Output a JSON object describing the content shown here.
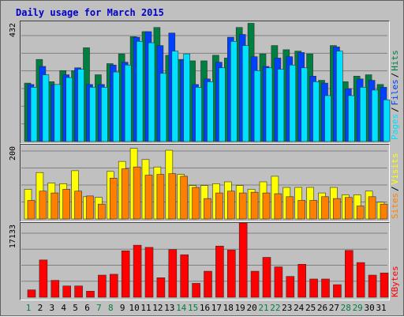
{
  "chart_data": [
    {
      "type": "bar",
      "title": "Daily usage for March 2015",
      "panel": "hits-files-pages",
      "ymax_label": "432",
      "ylim": [
        0,
        432
      ],
      "legend_placement": "right-vertical",
      "legend": [
        {
          "name": "Pages",
          "color": "#00e0ff"
        },
        {
          "name": "Files",
          "color": "#0040ff"
        },
        {
          "name": "Hits",
          "color": "#008040"
        }
      ],
      "legend_separator": "/",
      "categories": [
        "1",
        "2",
        "3",
        "4",
        "5",
        "6",
        "7",
        "8",
        "9",
        "10",
        "11",
        "12",
        "13",
        "14",
        "15",
        "16",
        "17",
        "18",
        "19",
        "20",
        "21",
        "22",
        "23",
        "24",
        "25",
        "26",
        "27",
        "28",
        "29",
        "30",
        "31"
      ],
      "series": [
        {
          "name": "Hits",
          "color": "#008040",
          "values": [
            210,
            295,
            215,
            255,
            255,
            337,
            240,
            280,
            315,
            377,
            395,
            410,
            310,
            295,
            290,
            290,
            310,
            300,
            410,
            425,
            315,
            345,
            330,
            325,
            315,
            220,
            345,
            215,
            235,
            240,
            205
          ]
        },
        {
          "name": "Files",
          "color": "#0040ff",
          "values": [
            205,
            270,
            205,
            240,
            265,
            205,
            205,
            275,
            285,
            375,
            395,
            345,
            390,
            295,
            205,
            225,
            285,
            375,
            385,
            305,
            270,
            300,
            305,
            320,
            235,
            210,
            340,
            190,
            225,
            220,
            195
          ]
        },
        {
          "name": "Pages",
          "color": "#00e0ff",
          "values": [
            195,
            240,
            205,
            230,
            260,
            195,
            195,
            250,
            275,
            360,
            355,
            245,
            325,
            315,
            195,
            215,
            265,
            360,
            345,
            255,
            265,
            260,
            275,
            265,
            215,
            165,
            325,
            165,
            195,
            185,
            150
          ]
        }
      ]
    },
    {
      "type": "bar",
      "panel": "visits-sites",
      "ymax_label": "200",
      "ylim": [
        0,
        200
      ],
      "legend_placement": "right-vertical",
      "legend": [
        {
          "name": "Sites",
          "color": "#ff8000"
        },
        {
          "name": "Visits",
          "color": "#ffff00"
        }
      ],
      "legend_separator": "/",
      "categories": [
        "1",
        "2",
        "3",
        "4",
        "5",
        "6",
        "7",
        "8",
        "9",
        "10",
        "11",
        "12",
        "13",
        "14",
        "15",
        "16",
        "17",
        "18",
        "19",
        "20",
        "21",
        "22",
        "23",
        "24",
        "25",
        "26",
        "27",
        "28",
        "29",
        "30",
        "31"
      ],
      "series": [
        {
          "name": "Visits",
          "color": "#ffff00",
          "values": [
            80,
            125,
            97,
            95,
            130,
            60,
            58,
            128,
            155,
            190,
            160,
            140,
            185,
            120,
            90,
            90,
            95,
            100,
            90,
            80,
            100,
            115,
            85,
            85,
            85,
            70,
            85,
            65,
            65,
            75,
            45
          ]
        },
        {
          "name": "Sites",
          "color": "#ff8000",
          "values": [
            50,
            75,
            70,
            80,
            75,
            62,
            40,
            110,
            135,
            140,
            118,
            120,
            122,
            115,
            85,
            55,
            70,
            75,
            70,
            72,
            70,
            68,
            60,
            50,
            50,
            60,
            55,
            58,
            35,
            60,
            40
          ]
        }
      ]
    },
    {
      "type": "bar",
      "panel": "kbytes",
      "ymax_label": "17133",
      "ylim": [
        0,
        17133
      ],
      "legend_placement": "right-vertical",
      "legend": [
        {
          "name": "KBytes",
          "color": "#ff0000"
        }
      ],
      "categories": [
        "1",
        "2",
        "3",
        "4",
        "5",
        "6",
        "7",
        "8",
        "9",
        "10",
        "11",
        "12",
        "13",
        "14",
        "15",
        "16",
        "17",
        "18",
        "19",
        "20",
        "21",
        "22",
        "23",
        "24",
        "25",
        "26",
        "27",
        "28",
        "29",
        "30",
        "31"
      ],
      "series": [
        {
          "name": "KBytes",
          "color": "#ff0000",
          "values": [
            1700,
            8600,
            3900,
            2600,
            2600,
            1400,
            5100,
            5300,
            10700,
            12000,
            11500,
            4500,
            11000,
            9800,
            3200,
            6000,
            11800,
            10900,
            17133,
            6000,
            9200,
            7000,
            4800,
            7600,
            4200,
            4200,
            2900,
            10800,
            8000,
            5100,
            5600
          ]
        }
      ]
    }
  ],
  "x_labels": [
    "1",
    "2",
    "3",
    "4",
    "5",
    "6",
    "7",
    "8",
    "9",
    "10",
    "11",
    "12",
    "13",
    "14",
    "15",
    "16",
    "17",
    "18",
    "19",
    "20",
    "21",
    "22",
    "23",
    "24",
    "25",
    "26",
    "27",
    "28",
    "29",
    "30",
    "31"
  ],
  "weekend_days": [
    "1",
    "7",
    "8",
    "14",
    "15",
    "21",
    "22",
    "28",
    "29"
  ],
  "colors": {
    "background": "#c0c0c0",
    "title": "#0000c8",
    "weekday_label": "#000000",
    "weekend_label": "#007f3f",
    "grid": "#808080"
  }
}
